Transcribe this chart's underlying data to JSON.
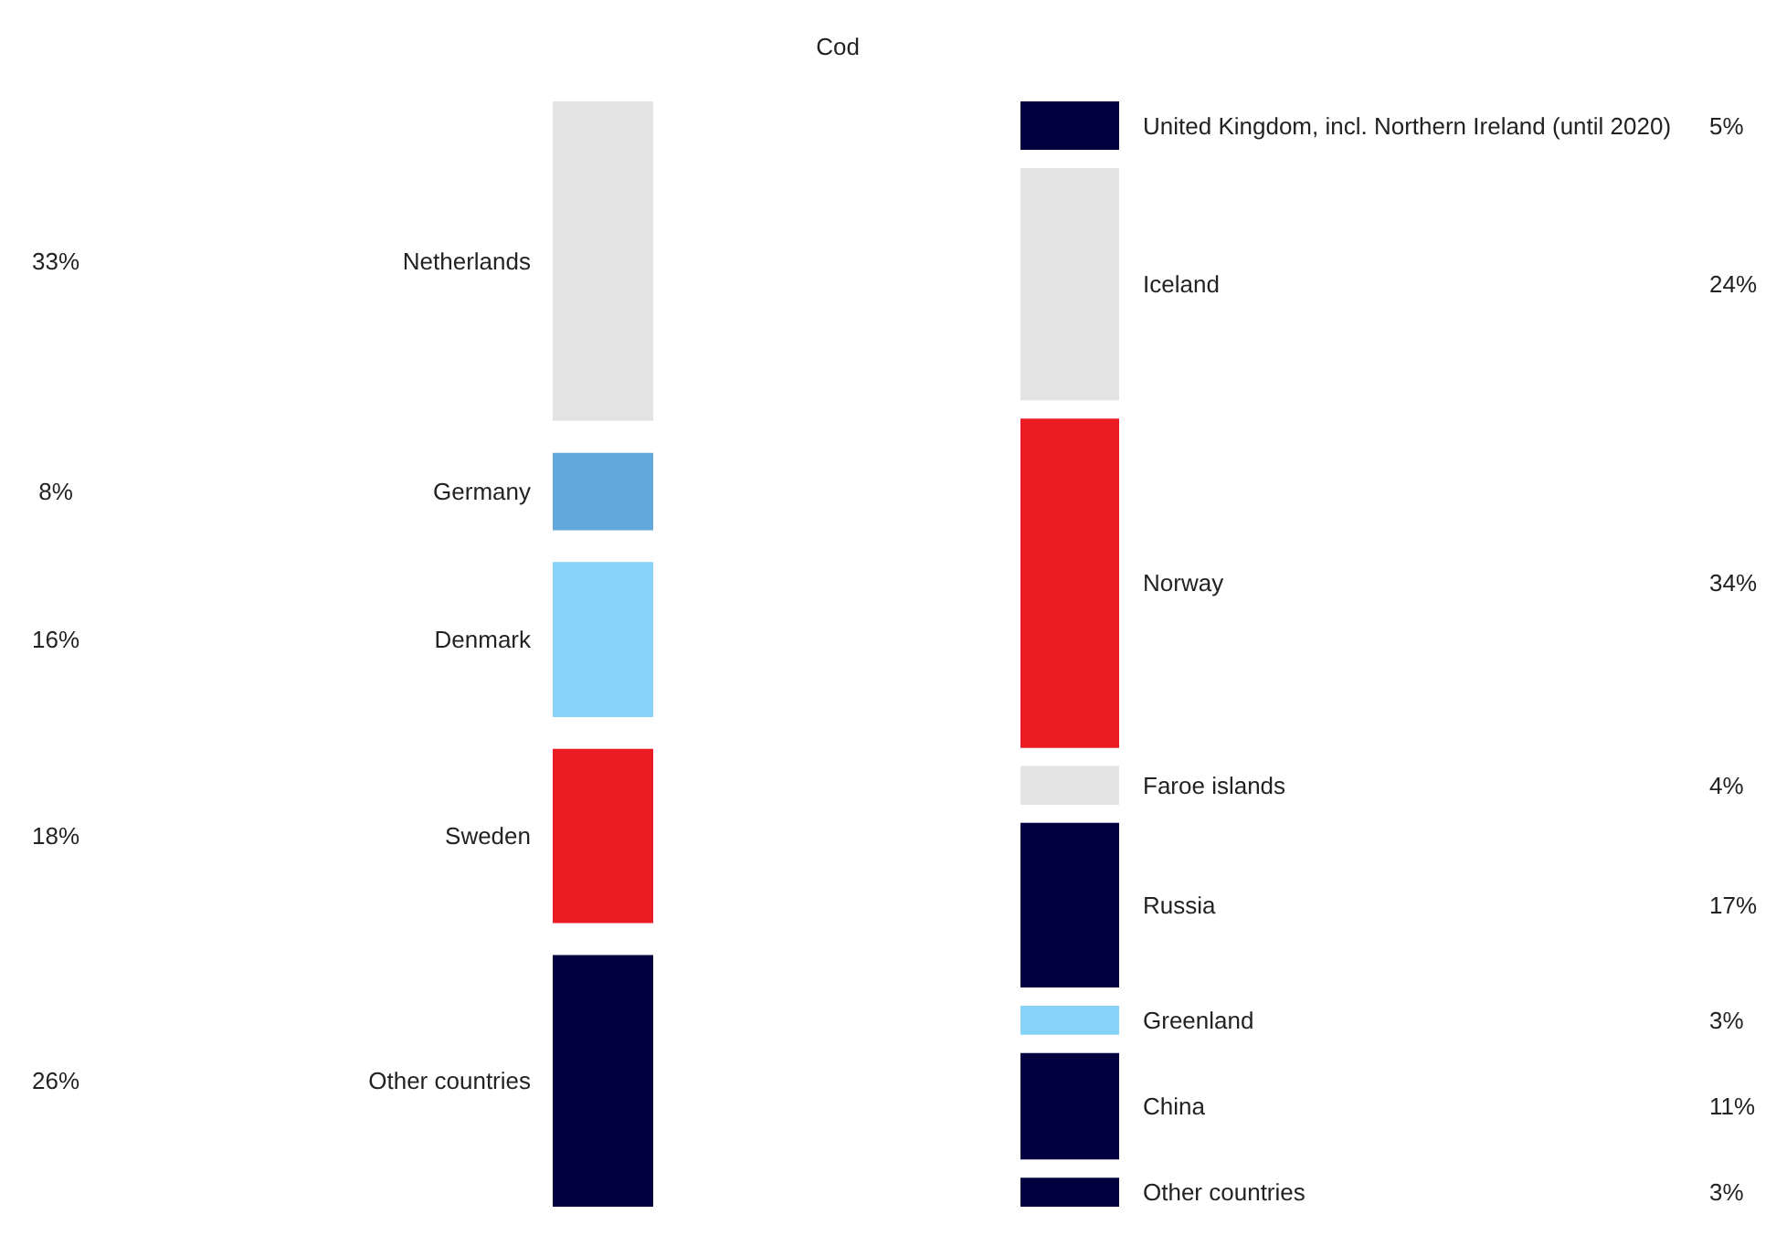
{
  "chart_data": [
    {
      "type": "other",
      "title": "Cod",
      "categories": [
        "Netherlands",
        "Germany",
        "Denmark",
        "Sweden",
        "Other countries"
      ],
      "values": [
        33,
        8,
        16,
        18,
        26
      ],
      "value_labels": [
        "33%",
        "8%",
        "16%",
        "18%",
        "26%"
      ],
      "colors": [
        "#e3e3e3",
        "#63a8dc",
        "#85d4f7",
        "#ed1c24",
        "#03003f"
      ]
    },
    {
      "type": "other",
      "categories": [
        "United Kingdom, incl. Northern Ireland (until 2020)",
        "Iceland",
        "Norway",
        "Faroe islands",
        "Russia",
        "Greenland",
        "China",
        "Other countries"
      ],
      "values": [
        5,
        24,
        34,
        4,
        17,
        3,
        11,
        3
      ],
      "value_labels": [
        "5%",
        "24%",
        "34%",
        "4%",
        "17%",
        "3%",
        "11%",
        "3%"
      ],
      "colors": [
        "#03003f",
        "#e3e3e3",
        "#ed1c24",
        "#e3e3e3",
        "#03003f",
        "#85d4f7",
        "#03003f",
        "#03003f"
      ]
    }
  ]
}
